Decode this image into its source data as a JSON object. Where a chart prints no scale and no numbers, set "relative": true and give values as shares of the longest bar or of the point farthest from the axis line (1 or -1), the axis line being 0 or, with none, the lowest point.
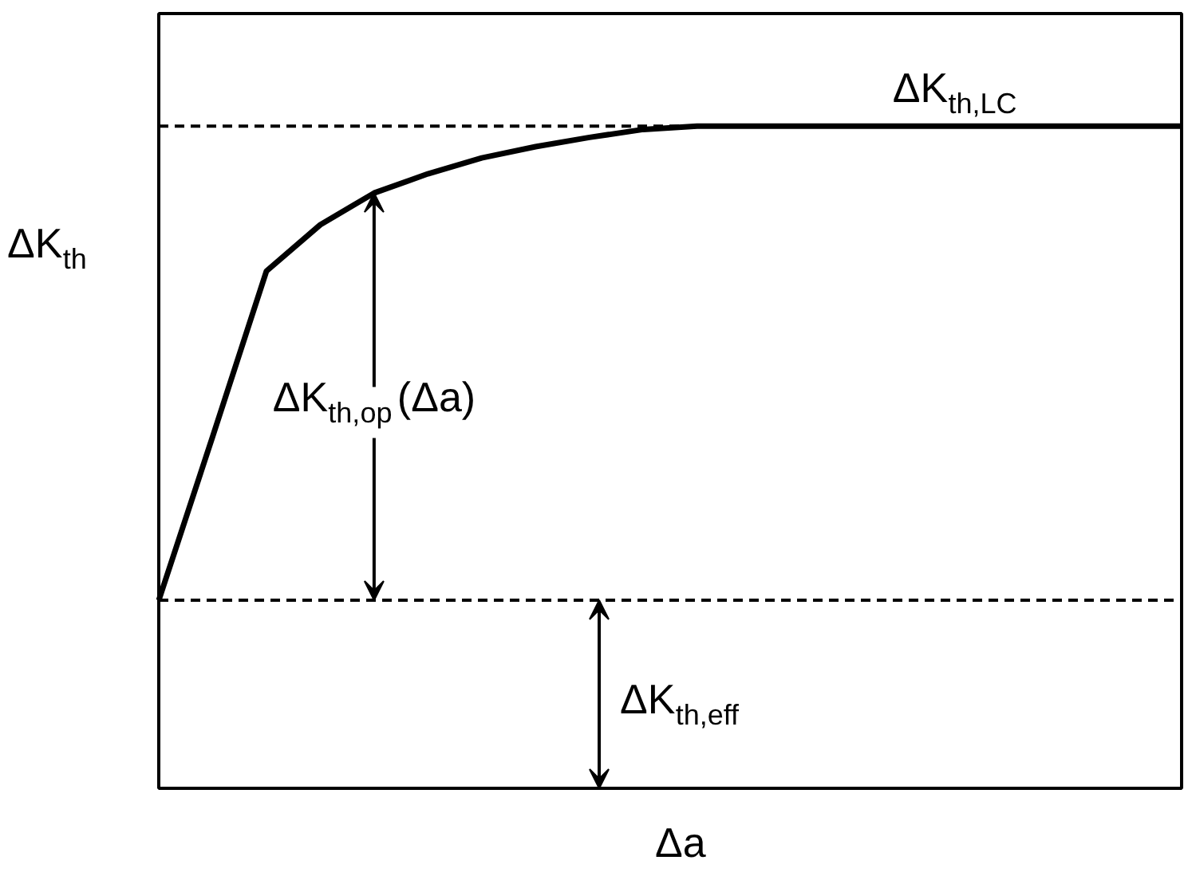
{
  "chart_data": {
    "type": "line",
    "relative": true,
    "xlabel": "Δa",
    "ylabel": "ΔK$_{th}$",
    "categories": [
      null,
      null,
      null,
      null,
      null,
      null,
      null,
      null,
      null,
      null,
      null,
      null,
      null,
      null,
      null,
      null,
      null,
      null,
      null,
      null
    ],
    "series": [
      {
        "color": "#000000",
        "values": [
          0.284,
          0.531,
          0.781,
          0.851,
          0.899,
          0.928,
          0.952,
          0.969,
          0.983,
          0.995,
          1,
          1,
          1,
          1,
          1,
          1,
          1,
          1,
          1,
          1
        ]
      }
    ],
    "ref_lines": [
      {
        "axis": "y",
        "value": 1,
        "line_style": "dashed",
        "color": "#000000"
      },
      {
        "axis": "y",
        "value": 0.284,
        "line_style": "dashed",
        "color": "#000000"
      }
    ],
    "annotations": [
      "ΔK$_{th,LC}$",
      "ΔK$_{th,op}$(Δa)",
      "ΔK$_{th,eff}$"
    ]
  }
}
